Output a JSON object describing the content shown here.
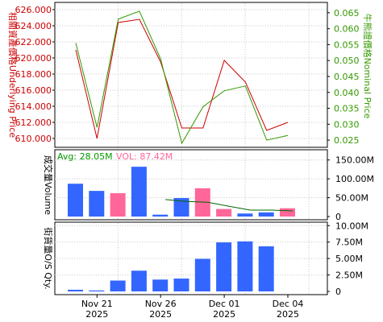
{
  "colors": {
    "underlying": "#cc0000",
    "nominal": "#339900",
    "avg_text": "#009900",
    "vol_text": "#ff6699",
    "bar_blue": "#3366ff",
    "bar_pink": "#ff6699",
    "line_dark_green": "#006600",
    "axis_text": "#000000",
    "grid": "#c8c8c8",
    "frame": "#000000"
  },
  "labels": {
    "price_left": "相關資產價格Underlying Price",
    "price_right": "牛熊證價格Nominal Price",
    "volume_left": "成交量Volume",
    "outstanding_left": "街貨量O/S Qty.",
    "avg": "Avg: 28.05M",
    "vol": "VOL: 87.42M"
  },
  "chart_data": [
    {
      "type": "line",
      "name": "price",
      "x": [
        "2025-11-20",
        "2025-11-21",
        "2025-11-24",
        "2025-11-25",
        "2025-11-26",
        "2025-11-27",
        "2025-11-28",
        "2025-12-01",
        "2025-12-02",
        "2025-12-03",
        "2025-12-04"
      ],
      "series": [
        {
          "name": "Underlying Price",
          "axis": "left",
          "values": [
            621.0,
            610.0,
            624.4,
            624.8,
            619.5,
            611.3,
            611.3,
            619.7,
            617.0,
            611.0,
            612.0
          ]
        },
        {
          "name": "Nominal Price",
          "axis": "right",
          "values": [
            0.0555,
            0.029,
            0.063,
            0.0655,
            0.0505,
            0.024,
            0.0355,
            0.0405,
            0.042,
            0.025,
            0.0265
          ]
        }
      ],
      "ylim_left": [
        609.0,
        626.8
      ],
      "ylim_right": [
        0.023,
        0.068
      ],
      "yticks_left": [
        "610.000",
        "612.000",
        "614.000",
        "616.000",
        "618.000",
        "620.000",
        "622.000",
        "624.000",
        "626.000"
      ],
      "yticks_right": [
        "0.025",
        "0.030",
        "0.035",
        "0.040",
        "0.045",
        "0.050",
        "0.055",
        "0.060",
        "0.065"
      ],
      "grid": true
    },
    {
      "type": "bar",
      "name": "volume",
      "x": [
        "2025-11-20",
        "2025-11-21",
        "2025-11-24",
        "2025-11-25",
        "2025-11-26",
        "2025-11-27",
        "2025-11-28",
        "2025-12-01",
        "2025-12-02",
        "2025-12-03",
        "2025-12-04"
      ],
      "values_M": [
        87,
        68,
        62,
        132,
        5,
        49,
        75,
        20,
        8,
        11,
        22
      ],
      "colors": [
        "blue",
        "blue",
        "pink",
        "blue",
        "blue",
        "blue",
        "pink",
        "pink",
        "blue",
        "blue",
        "pink"
      ],
      "avg_line_M": [
        null,
        null,
        null,
        null,
        45,
        40,
        38,
        27,
        17,
        17,
        15
      ],
      "ylim": [
        0,
        175
      ],
      "yticks": [
        "0",
        "50.00M",
        "100.00M",
        "150.00M"
      ],
      "grid": true
    },
    {
      "type": "bar",
      "name": "outstanding",
      "x": [
        "2025-11-20",
        "2025-11-21",
        "2025-11-24",
        "2025-11-25",
        "2025-11-26",
        "2025-11-27",
        "2025-11-28",
        "2025-12-01",
        "2025-12-02",
        "2025-12-03",
        "2025-12-04"
      ],
      "values_M": [
        0.25,
        0.15,
        1.65,
        3.15,
        1.8,
        1.95,
        4.95,
        7.45,
        7.6,
        6.85,
        null
      ],
      "ylim": [
        0,
        10.4
      ],
      "yticks": [
        "0",
        "2.50M",
        "5.00M",
        "7.50M",
        "10.00M"
      ],
      "grid": true
    }
  ],
  "x_axis": {
    "ticks": [
      {
        "date": "2025-11-21",
        "label": "Nov 21",
        "year": "2025"
      },
      {
        "date": "2025-11-26",
        "label": "Nov 26",
        "year": "2025"
      },
      {
        "date": "2025-12-01",
        "label": "Dec 01",
        "year": "2025"
      },
      {
        "date": "2025-12-04",
        "label": "Dec 04",
        "year": "2025"
      }
    ]
  }
}
